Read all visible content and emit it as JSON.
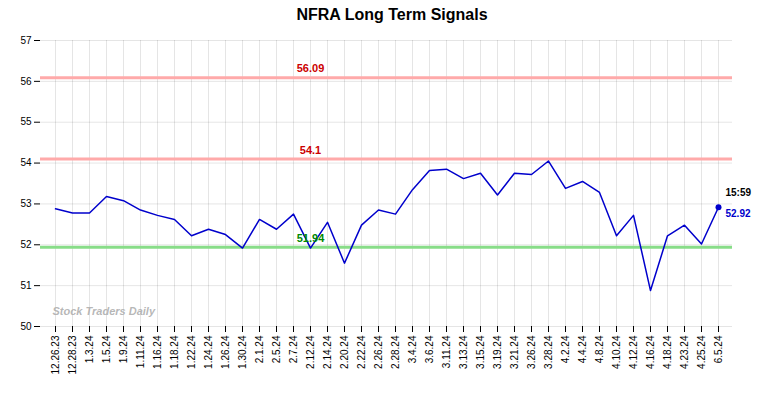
{
  "chart_data": {
    "type": "line",
    "title": "NFRA Long Term Signals",
    "categories": [
      "12.26.23",
      "12.28.23",
      "1.3.24",
      "1.5.24",
      "1.9.24",
      "1.11.24",
      "1.16.24",
      "1.18.24",
      "1.22.24",
      "1.24.24",
      "1.26.24",
      "1.30.24",
      "2.1.24",
      "2.5.24",
      "2.7.24",
      "2.12.24",
      "2.14.24",
      "2.20.24",
      "2.22.24",
      "2.26.24",
      "2.28.24",
      "3.4.24",
      "3.6.24",
      "3.11.24",
      "3.13.24",
      "3.15.24",
      "3.19.24",
      "3.21.24",
      "3.26.24",
      "3.28.24",
      "4.2.24",
      "4.4.24",
      "4.8.24",
      "4.10.24",
      "4.12.24",
      "4.16.24",
      "4.18.24",
      "4.23.24",
      "4.25.24",
      "6.5.24"
    ],
    "values": [
      52.88,
      52.78,
      52.78,
      53.18,
      53.08,
      52.85,
      52.72,
      52.62,
      52.22,
      52.38,
      52.25,
      51.92,
      52.62,
      52.38,
      52.75,
      51.92,
      52.55,
      51.55,
      52.48,
      52.85,
      52.75,
      53.35,
      53.82,
      53.85,
      53.62,
      53.75,
      53.22,
      53.75,
      53.72,
      54.05,
      53.38,
      53.55,
      53.28,
      52.22,
      52.72,
      50.88,
      52.22,
      52.48,
      52.02,
      52.92
    ],
    "color": "#0000cc",
    "ylim": [
      50,
      57
    ],
    "yticks": [
      50,
      51,
      52,
      53,
      54,
      55,
      56,
      57
    ],
    "grid": true,
    "hlines": [
      {
        "value": 56.09,
        "label": "56.09",
        "color": "#ffaaaa",
        "label_color": "#cc0000"
      },
      {
        "value": 54.1,
        "label": "54.1",
        "color": "#ffaaaa",
        "label_color": "#cc0000"
      },
      {
        "value": 51.94,
        "label": "51.94",
        "color": "#88dd88",
        "label_color": "#008800"
      }
    ],
    "last_point": {
      "time_label": "15:59",
      "value": 52.92,
      "color": "#0000cc",
      "time_color": "#000000"
    },
    "watermark": "Stock Traders Daily"
  }
}
